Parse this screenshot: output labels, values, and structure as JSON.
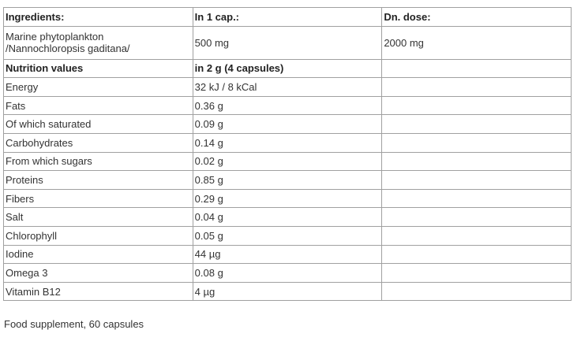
{
  "header": {
    "col1": "Ingredients:",
    "col2": "In 1 cap.:",
    "col3": "Dn. dose:"
  },
  "ingredient": {
    "name_line1": "Marine phytoplankton",
    "name_line2": "/Nannochloropsis gaditana/",
    "per_cap": "500 mg",
    "daily_dose": "2000 mg"
  },
  "nutrition_header": {
    "label": "Nutrition values",
    "amount": "in 2 g (4 capsules)"
  },
  "rows": [
    {
      "name": "Energy",
      "value": "32 kJ / 8 kCal"
    },
    {
      "name": "Fats",
      "value": "0.36 g"
    },
    {
      "name": "Of which saturated",
      "value": "0.09 g"
    },
    {
      "name": "Carbohydrates",
      "value": "0.14 g"
    },
    {
      "name": "From which sugars",
      "value": "0.02 g"
    },
    {
      "name": "Proteins",
      "value": "0.85 g"
    },
    {
      "name": "Fibers",
      "value": "0.29 g"
    },
    {
      "name": "Salt",
      "value": "0.04 g"
    },
    {
      "name": "Chlorophyll",
      "value": "0.05 g"
    },
    {
      "name": "Iodine",
      "value": "44 µg"
    },
    {
      "name": "Omega 3",
      "value": "0.08 g"
    },
    {
      "name": "Vitamin B12",
      "value": "4 µg"
    }
  ],
  "footer": "Food supplement, 60 capsules"
}
